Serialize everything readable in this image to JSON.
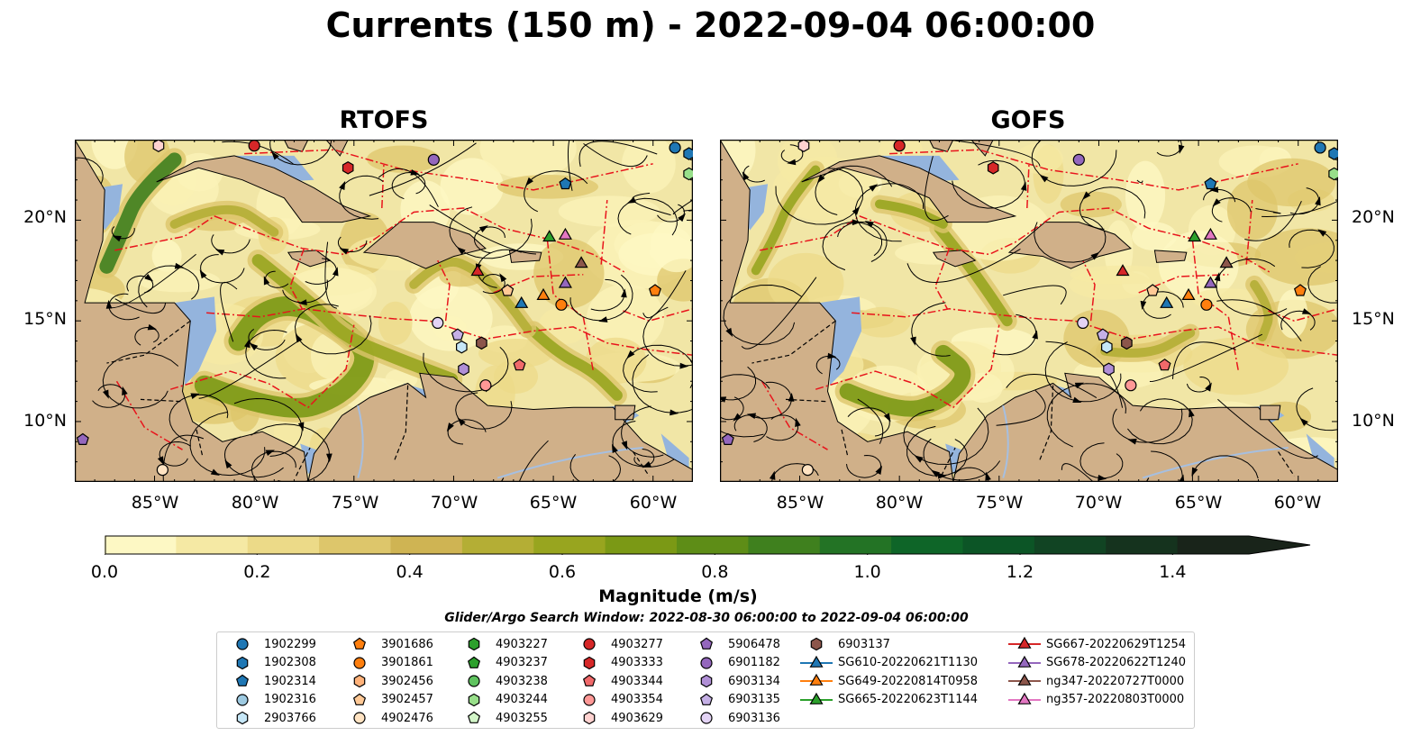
{
  "title": "Currents (150 m) - 2022-09-04 06:00:00",
  "panels": [
    {
      "title": "RTOFS"
    },
    {
      "title": "GOFS"
    }
  ],
  "axes": {
    "lat_labels": [
      "20°N",
      "15°N",
      "10°N"
    ],
    "lon_labels": [
      "85°W",
      "80°W",
      "75°W",
      "70°W",
      "65°W",
      "60°W"
    ]
  },
  "colorbar": {
    "label": "Magnitude (m/s)",
    "ticks": [
      "0.0",
      "0.2",
      "0.4",
      "0.6",
      "0.8",
      "1.0",
      "1.2",
      "1.4"
    ],
    "range": [
      0,
      1.5
    ],
    "colors": [
      "#fdf8c4",
      "#f5e9a4",
      "#ecda88",
      "#ddc66b",
      "#cfb453",
      "#b4ae35",
      "#98a51f",
      "#7b9915",
      "#5e8d17",
      "#3f801e",
      "#237325",
      "#0e6528",
      "#0c5526",
      "#114423",
      "#15331e",
      "#19241a"
    ]
  },
  "search_window": "Glider/Argo Search Window: 2022-08-30 06:00:00 to 2022-09-04 06:00:00",
  "legend": [
    {
      "label": "1902299",
      "marker": "circle",
      "color": "#1f77b4"
    },
    {
      "label": "1902308",
      "marker": "hexagon",
      "color": "#1f77b4"
    },
    {
      "label": "1902314",
      "marker": "pentagon",
      "color": "#1f77b4"
    },
    {
      "label": "1902316",
      "marker": "circle",
      "color": "#9ecae1"
    },
    {
      "label": "2903766",
      "marker": "hexagon",
      "color": "#c6e7f7"
    },
    {
      "label": "3901686",
      "marker": "pentagon",
      "color": "#ff7f0e"
    },
    {
      "label": "3901861",
      "marker": "circle",
      "color": "#ff7f0e"
    },
    {
      "label": "3902456",
      "marker": "hexagon",
      "color": "#ffb27a"
    },
    {
      "label": "3902457",
      "marker": "pentagon",
      "color": "#ffc996"
    },
    {
      "label": "4902476",
      "marker": "circle",
      "color": "#ffe3c2"
    },
    {
      "label": "4903227",
      "marker": "hexagon",
      "color": "#2ca02c"
    },
    {
      "label": "4903237",
      "marker": "pentagon",
      "color": "#2ca02c"
    },
    {
      "label": "4903238",
      "marker": "circle",
      "color": "#5fc35f"
    },
    {
      "label": "4903244",
      "marker": "hexagon",
      "color": "#98df8a"
    },
    {
      "label": "4903255",
      "marker": "pentagon",
      "color": "#d2f5c8"
    },
    {
      "label": "4903277",
      "marker": "circle",
      "color": "#d62728"
    },
    {
      "label": "4903333",
      "marker": "hexagon",
      "color": "#d62728"
    },
    {
      "label": "4903344",
      "marker": "pentagon",
      "color": "#f0696a"
    },
    {
      "label": "4903354",
      "marker": "circle",
      "color": "#ff9896"
    },
    {
      "label": "4903629",
      "marker": "hexagon",
      "color": "#ffd2d0"
    },
    {
      "label": "5906478",
      "marker": "pentagon",
      "color": "#9467bd"
    },
    {
      "label": "6901182",
      "marker": "circle",
      "color": "#9467bd"
    },
    {
      "label": "6903134",
      "marker": "hexagon",
      "color": "#b08fd6"
    },
    {
      "label": "6903135",
      "marker": "pentagon",
      "color": "#c5b0e6"
    },
    {
      "label": "6903136",
      "marker": "circle",
      "color": "#e3d3f5"
    },
    {
      "label": "6903137",
      "marker": "hexagon",
      "color": "#8c564b"
    },
    {
      "label": "SG610-20220621T1130",
      "marker": "triangle-line",
      "color": "#1f77b4"
    },
    {
      "label": "SG649-20220814T0958",
      "marker": "triangle-line",
      "color": "#ff7f0e"
    },
    {
      "label": "SG665-20220623T1144",
      "marker": "triangle-line",
      "color": "#2ca02c"
    },
    {
      "label": "SG667-20220629T1254",
      "marker": "triangle-line",
      "color": "#d62728"
    },
    {
      "label": "SG678-20220622T1240",
      "marker": "triangle-line",
      "color": "#9467bd"
    },
    {
      "label": "ng347-20220727T0000",
      "marker": "triangle-line",
      "color": "#8c564b"
    },
    {
      "label": "ng357-20220803T0000",
      "marker": "triangle-line",
      "color": "#e377c2"
    }
  ],
  "map_extent": {
    "lon": [
      -89,
      -58
    ],
    "lat": [
      7,
      24
    ]
  },
  "platform_positions": [
    {
      "id": "1902299",
      "lon": -58.9,
      "lat": 23.6
    },
    {
      "id": "1902308",
      "lon": -58.2,
      "lat": 23.3
    },
    {
      "id": "1902314",
      "lon": -64.4,
      "lat": 21.8
    },
    {
      "id": "4903244",
      "lon": -58.2,
      "lat": 22.3
    },
    {
      "id": "4903277",
      "lon": -80.0,
      "lat": 23.7
    },
    {
      "id": "4903333",
      "lon": -75.3,
      "lat": 22.6
    },
    {
      "id": "6901182",
      "lon": -71.0,
      "lat": 23.0
    },
    {
      "id": "4903629",
      "lon": -84.8,
      "lat": 23.7
    },
    {
      "id": "SG665-20220623T1144",
      "lon": -65.2,
      "lat": 19.2
    },
    {
      "id": "ng357-20220803T0000",
      "lon": -64.4,
      "lat": 19.3
    },
    {
      "id": "ng347-20220727T0000",
      "lon": -63.6,
      "lat": 17.9
    },
    {
      "id": "SG667-20220629T1254",
      "lon": -68.8,
      "lat": 17.5
    },
    {
      "id": "3902457",
      "lon": -67.3,
      "lat": 16.5
    },
    {
      "id": "SG610-20220621T1130",
      "lon": -66.6,
      "lat": 15.9
    },
    {
      "id": "SG649-20220814T0958",
      "lon": -65.5,
      "lat": 16.3
    },
    {
      "id": "3901861",
      "lon": -64.6,
      "lat": 15.8
    },
    {
      "id": "SG678-20220622T1240",
      "lon": -64.4,
      "lat": 16.9
    },
    {
      "id": "3901686",
      "lon": -59.9,
      "lat": 16.5
    },
    {
      "id": "6903136",
      "lon": -70.8,
      "lat": 14.9
    },
    {
      "id": "6903135",
      "lon": -69.8,
      "lat": 14.3
    },
    {
      "id": "2903766",
      "lon": -69.6,
      "lat": 13.7
    },
    {
      "id": "6903137",
      "lon": -68.6,
      "lat": 13.9
    },
    {
      "id": "6903134",
      "lon": -69.5,
      "lat": 12.6
    },
    {
      "id": "4903354",
      "lon": -68.4,
      "lat": 11.8
    },
    {
      "id": "4903344",
      "lon": -66.7,
      "lat": 12.8
    },
    {
      "id": "5906478",
      "lon": -88.6,
      "lat": 9.1
    },
    {
      "id": "4902476",
      "lon": -84.6,
      "lat": 7.6
    }
  ]
}
